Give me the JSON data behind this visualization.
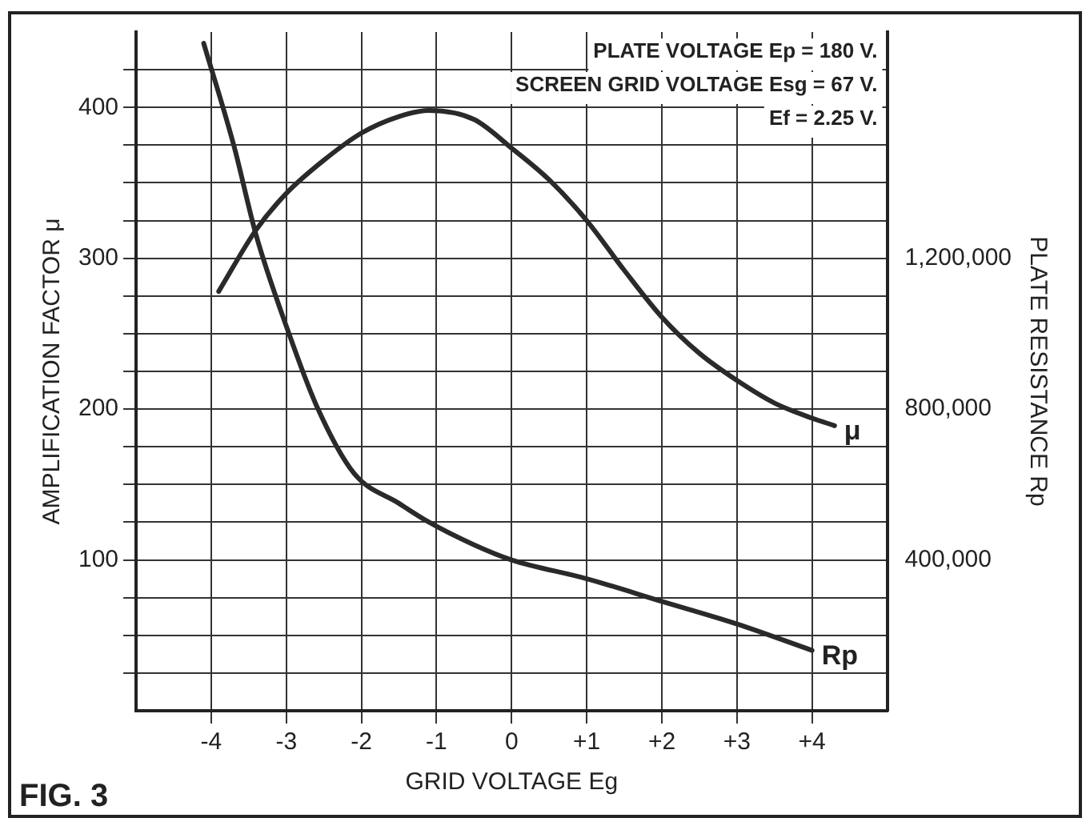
{
  "chart_data": {
    "type": "line",
    "xlabel": "GRID VOLTAGE Eg",
    "ylabel": "AMPLIFICATION FACTOR μ",
    "y2label": "PLATE RESISTANCE Rp",
    "annotations": [
      "PLATE VOLTAGE Ep = 180 V.",
      "SCREEN GRID VOLTAGE Esg = 67 V.",
      "Ef = 2.25 V.",
      "FIG. 3"
    ],
    "xlim": [
      -5,
      5
    ],
    "xticks": [
      {
        "value": -4,
        "label": "-4"
      },
      {
        "value": -3,
        "label": "-3"
      },
      {
        "value": -2,
        "label": "-2"
      },
      {
        "value": -1,
        "label": "-1"
      },
      0,
      {
        "value": 1,
        "label": "+1"
      },
      {
        "value": 2,
        "label": "+2"
      },
      {
        "value": 3,
        "label": "+3"
      },
      {
        "value": 4,
        "label": "+4"
      }
    ],
    "ylim": [
      0,
      450
    ],
    "yticks": [
      {
        "value": 25,
        "label": null
      },
      {
        "value": 50,
        "label": null
      },
      {
        "value": 75,
        "label": null
      },
      100,
      {
        "value": 125,
        "label": null
      },
      {
        "value": 150,
        "label": null
      },
      {
        "value": 175,
        "label": null
      },
      200,
      {
        "value": 225,
        "label": null
      },
      {
        "value": 250,
        "label": null
      },
      {
        "value": 275,
        "label": null
      },
      300,
      {
        "value": 325,
        "label": null
      },
      {
        "value": 350,
        "label": null
      },
      {
        "value": 375,
        "label": null
      },
      400,
      {
        "value": 425,
        "label": null
      }
    ],
    "y2lim": [
      0,
      1800000
    ],
    "y2ticks": [
      {
        "value": 400000,
        "label": "400,000"
      },
      {
        "value": 800000,
        "label": "800,000"
      },
      {
        "value": 1200000,
        "label": "1,200,000"
      }
    ],
    "grid": true,
    "legend": false,
    "marker": "none",
    "line_style": "solid",
    "series": [
      {
        "name": "μ",
        "color": "#2a2a2a",
        "x": [
          -3.9,
          -3.4,
          -3.0,
          -2.5,
          -2.0,
          -1.5,
          -1.1,
          -0.5,
          0,
          0.5,
          1.0,
          1.5,
          2.0,
          2.5,
          3.0,
          3.5,
          4.0,
          4.3
        ],
        "values": [
          278,
          319,
          343,
          365,
          383,
          394,
          398,
          392,
          373,
          352,
          325,
          292,
          261,
          237,
          219,
          204,
          194,
          189
        ]
      },
      {
        "name": "Rp",
        "axis": "y2",
        "color": "#2a2a2a",
        "x": [
          -4.1,
          -3.7,
          -3.4,
          -3.0,
          -2.6,
          -2.1,
          -1.5,
          -1.1,
          -0.5,
          0,
          1.0,
          2.0,
          3.0,
          4.0
        ],
        "values": [
          1770000,
          1500000,
          1260000,
          1020000,
          810000,
          630000,
          550000,
          500000,
          440000,
          400000,
          350000,
          290000,
          230000,
          160000
        ]
      }
    ]
  }
}
